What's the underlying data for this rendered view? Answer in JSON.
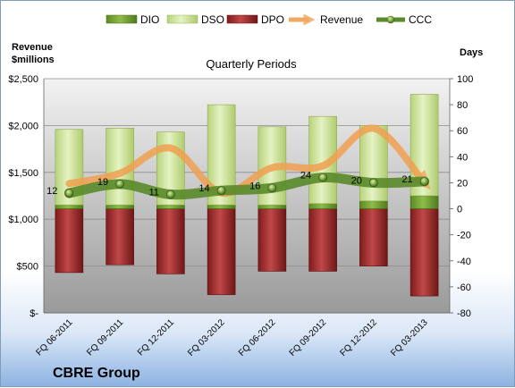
{
  "company": "CBRE Group",
  "chart_data": {
    "type": "bar",
    "title": "Quarterly Periods",
    "left_axis_label": [
      "Revenue",
      "$millions"
    ],
    "right_axis_label": "Days",
    "left_ticks": [
      "$-",
      "$500",
      "$1,000",
      "$1,500",
      "$2,000",
      "$2,500"
    ],
    "left_ylim": [
      0,
      2500
    ],
    "right_ticks": [
      "-80",
      "-60",
      "-40",
      "-20",
      "0",
      "20",
      "40",
      "60",
      "80",
      "100"
    ],
    "right_ylim": [
      -80,
      100
    ],
    "categories": [
      "FQ 06-2011",
      "FQ 09-2011",
      "FQ 12-2011",
      "FQ 03-2012",
      "FQ 06-2012",
      "FQ 09-2012",
      "FQ 12-2012",
      "FQ 03-2013"
    ],
    "legend_position": "top",
    "series": [
      {
        "name": "DIO",
        "axis": "days",
        "color": "#6e9a30",
        "values": [
          3,
          3,
          3,
          3,
          3,
          4,
          6,
          10
        ]
      },
      {
        "name": "DSO",
        "axis": "days",
        "color": "#c8e08c",
        "values": [
          58,
          59,
          56,
          77,
          60,
          67,
          58,
          78
        ]
      },
      {
        "name": "DPO",
        "axis": "days",
        "color": "#9c2a2a",
        "values": [
          -49,
          -43,
          -50,
          -66,
          -48,
          -48,
          -44,
          -67
        ]
      },
      {
        "name": "Revenue",
        "axis": "revenue",
        "color": "#f0a050",
        "values": [
          1380,
          1490,
          1760,
          1280,
          1550,
          1570,
          1970,
          1390
        ]
      },
      {
        "name": "CCC",
        "axis": "days",
        "color": "#5a8a2a",
        "values": [
          12,
          19,
          11,
          14,
          16,
          24,
          20,
          21
        ]
      }
    ],
    "ccc_labels": [
      "12",
      "19",
      "11",
      "14",
      "16",
      "24",
      "20",
      "21"
    ]
  }
}
